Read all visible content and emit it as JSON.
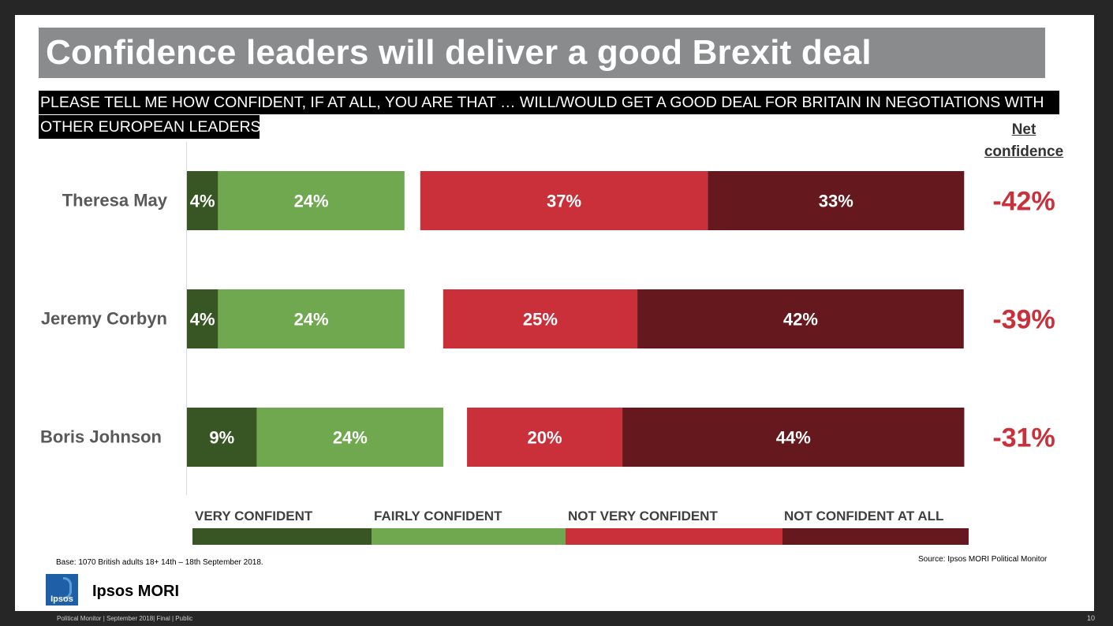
{
  "slide": {
    "title": "Confidence leaders will deliver a good Brexit deal",
    "question_line1": "PLEASE TELL ME HOW CONFIDENT, IF AT ALL, YOU ARE THAT  … WILL/WOULD GET A GOOD DEAL FOR BRITAIN IN NEGOTIATIONS WITH",
    "question_line2": "OTHER EUROPEAN LEADERS?",
    "net_header_line1": "Net",
    "net_header_line2": "confidence",
    "base": "Base:  1070 British adults 18+ 14th – 18th September 2018.",
    "source": "Source: Ipsos MORI Political Monitor",
    "logo_text": "Ipsos",
    "brand": "Ipsos MORI",
    "footer": "Political Monitor | September 2018| Final | Public",
    "page_number": "10"
  },
  "colors": {
    "very_confident": "#375623",
    "fairly_confident": "#70a84f",
    "not_very_confident": "#c9303a",
    "not_confident_at_all": "#65191e",
    "net_text": "#c9303a"
  },
  "chart_data": {
    "type": "bar",
    "orientation": "horizontal-diverging-stacked",
    "categories": [
      "Theresa May",
      "Jeremy Corbyn",
      "Boris Johnson"
    ],
    "series": [
      {
        "name": "VERY CONFIDENT",
        "values": [
          4,
          4,
          9
        ],
        "labels": [
          "4%",
          "4%",
          "9%"
        ]
      },
      {
        "name": "FAIRLY CONFIDENT",
        "values": [
          24,
          24,
          24
        ],
        "labels": [
          "24%",
          "24%",
          "24%"
        ]
      },
      {
        "name": "NOT VERY CONFIDENT",
        "values": [
          37,
          25,
          20
        ],
        "labels": [
          "37%",
          "25%",
          "20%"
        ]
      },
      {
        "name": "NOT CONFIDENT AT ALL",
        "values": [
          33,
          42,
          44
        ],
        "labels": [
          "33%",
          "42%",
          "44%"
        ]
      }
    ],
    "net_confidence": {
      "values": [
        -42,
        -39,
        -31
      ],
      "labels": [
        "-42%",
        "-39%",
        "-31%"
      ]
    },
    "unit": "%"
  }
}
